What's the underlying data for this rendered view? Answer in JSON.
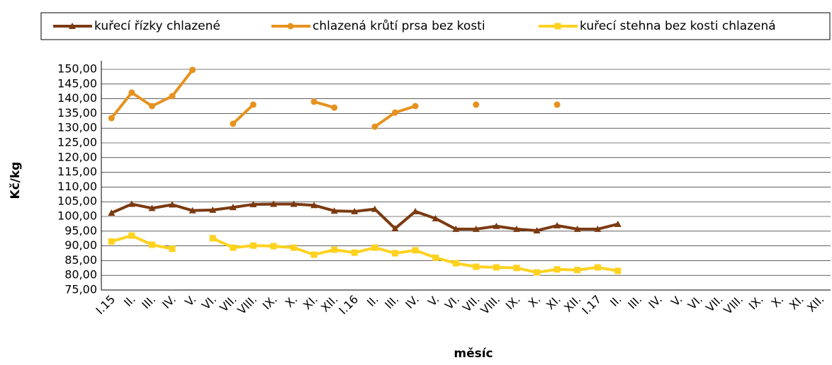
{
  "chart_data": {
    "type": "line",
    "x_label": "měsíc",
    "y_label": "Kč/kg",
    "categories": [
      "I.15",
      "II.",
      "III.",
      "IV.",
      "V.",
      "VI.",
      "VII.",
      "VIII.",
      "IX.",
      "X.",
      "XI.",
      "XII.",
      "I.16",
      "II.",
      "III.",
      "IV.",
      "V.",
      "VI.",
      "VII.",
      "VIII.",
      "IX.",
      "X.",
      "XI.",
      "XII.",
      "I.17",
      "II.",
      "III.",
      "IV.",
      "V.",
      "VI.",
      "VII.",
      "VIII.",
      "IX.",
      "X.",
      "XI.",
      "XII."
    ],
    "series": [
      {
        "name": "kuřecí řízky chlazené",
        "color": "#7b3a12",
        "marker": "triangle",
        "values": [
          101.2,
          104.2,
          102.8,
          104,
          102,
          102.2,
          103.1,
          104.1,
          104.2,
          104.2,
          103.8,
          101.9,
          101.7,
          102.5,
          95.9,
          101.7,
          99.3,
          95.7,
          95.7,
          96.7,
          95.7,
          95.2,
          96.9,
          95.7,
          95.7,
          97.4,
          null,
          null,
          null,
          null,
          null,
          null,
          null,
          null,
          null,
          null
        ]
      },
      {
        "name": "chlazená krůtí prsa bez kosti",
        "color": "#e6921f",
        "marker": "circle",
        "values": [
          133.4,
          142.1,
          137.5,
          140.9,
          149.8,
          null,
          131.5,
          138,
          null,
          null,
          139,
          137,
          null,
          130.5,
          135.3,
          137.5,
          null,
          null,
          138,
          null,
          null,
          null,
          138,
          null,
          null,
          null,
          null,
          null,
          null,
          null,
          null,
          null,
          null,
          null,
          null,
          null
        ]
      },
      {
        "name": "kuřecí stehna bez kosti chlazená",
        "color": "#ffd21f",
        "marker": "square",
        "values": [
          91.5,
          93.5,
          90.4,
          89,
          null,
          92.6,
          89.4,
          90.1,
          89.9,
          89.4,
          87,
          88.7,
          87.7,
          89.4,
          87.5,
          88.5,
          86,
          84.1,
          82.9,
          82.7,
          82.5,
          81,
          82,
          81.8,
          82.7,
          81.5,
          null,
          null,
          null,
          null,
          null,
          null,
          null,
          null,
          null,
          null
        ]
      }
    ],
    "ylim": [
      75,
      150
    ],
    "yticks": [
      {
        "value": 75,
        "label": "75,00"
      },
      {
        "value": 80,
        "label": "80,00"
      },
      {
        "value": 85,
        "label": "85,00"
      },
      {
        "value": 90,
        "label": "90,00"
      },
      {
        "value": 95,
        "label": "95,00"
      },
      {
        "value": 100,
        "label": "100,00"
      },
      {
        "value": 105,
        "label": "105,00"
      },
      {
        "value": 110,
        "label": "110,00"
      },
      {
        "value": 115,
        "label": "115,00"
      },
      {
        "value": 120,
        "label": "120,00"
      },
      {
        "value": 125,
        "label": "125,00"
      },
      {
        "value": 130,
        "label": "130,00"
      },
      {
        "value": 135,
        "label": "135,00"
      },
      {
        "value": 140,
        "label": "140,00"
      },
      {
        "value": 145,
        "label": "145,00"
      },
      {
        "value": 150,
        "label": "150,00"
      }
    ],
    "grid": true,
    "legend": "top"
  }
}
